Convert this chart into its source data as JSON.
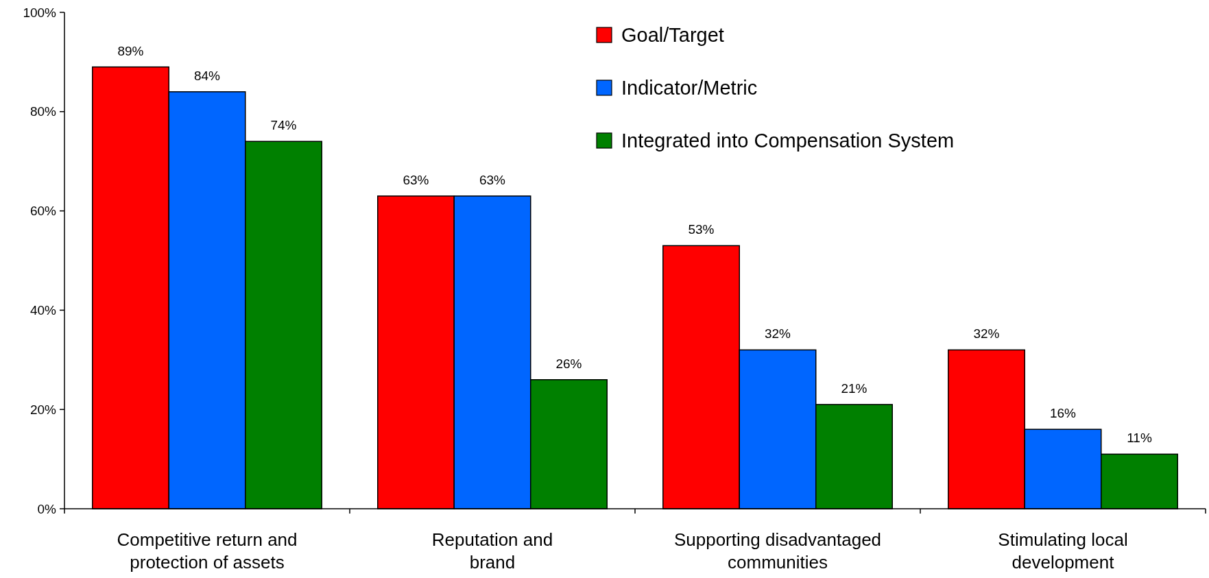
{
  "chart_data": {
    "type": "bar",
    "categories": [
      "Competitive return and\nprotection of assets",
      "Reputation and\nbrand",
      "Supporting disadvantaged\ncommunities",
      "Stimulating local\ndevelopment"
    ],
    "series": [
      {
        "name": "Goal/Target",
        "color": "#ff0000",
        "values": [
          89,
          63,
          53,
          32
        ],
        "value_labels": [
          "89%",
          "63%",
          "53%",
          "32%"
        ]
      },
      {
        "name": "Indicator/Metric",
        "color": "#0066ff",
        "values": [
          84,
          63,
          32,
          16
        ],
        "value_labels": [
          "84%",
          "63%",
          "32%",
          "16%"
        ]
      },
      {
        "name": "Integrated into Compensation System",
        "color": "#008000",
        "values": [
          74,
          26,
          21,
          11
        ],
        "value_labels": [
          "74%",
          "26%",
          "21%",
          "11%"
        ]
      }
    ],
    "ylim": [
      0,
      100
    ],
    "yticks": [
      {
        "value": 0,
        "label": "0%"
      },
      {
        "value": 20,
        "label": "20%"
      },
      {
        "value": 40,
        "label": "40%"
      },
      {
        "value": 60,
        "label": "60%"
      },
      {
        "value": 80,
        "label": "80%"
      },
      {
        "value": 100,
        "label": "100%"
      }
    ],
    "legend": "top right",
    "grid": false
  }
}
